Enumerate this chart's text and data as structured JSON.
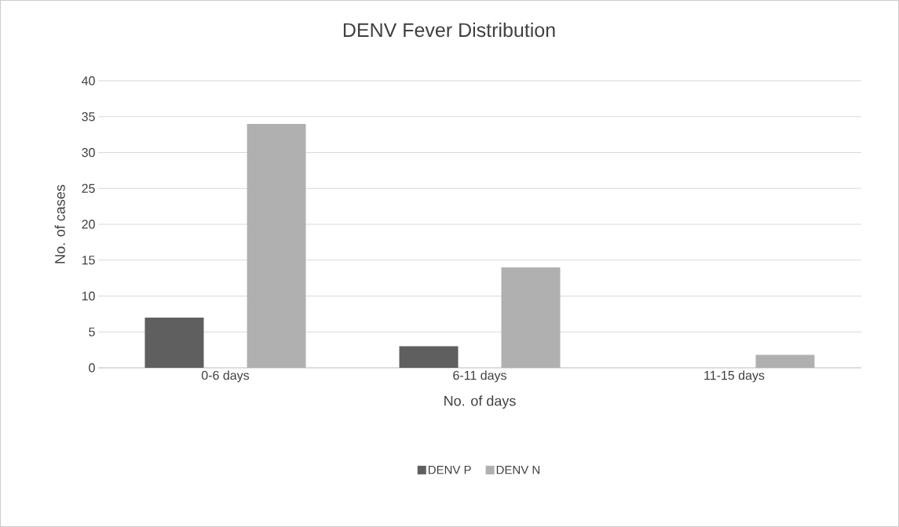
{
  "chart_data": {
    "type": "bar",
    "title": "DENV Fever Distribution",
    "xlabel": "No. of days",
    "ylabel": "No. of cases",
    "categories": [
      "0-6 days",
      "6-11 days",
      "11-15 days"
    ],
    "series": [
      {
        "name": "DENV P",
        "color": "#5f5f5f",
        "values": [
          7,
          3,
          0
        ]
      },
      {
        "name": "DENV N",
        "color": "#b0b0b0",
        "values": [
          34,
          14,
          1.8
        ]
      }
    ],
    "ylim": [
      0,
      40
    ],
    "yticks": [
      0,
      5,
      10,
      15,
      20,
      25,
      30,
      35,
      40
    ],
    "grid": "y",
    "legend": "bottom"
  }
}
